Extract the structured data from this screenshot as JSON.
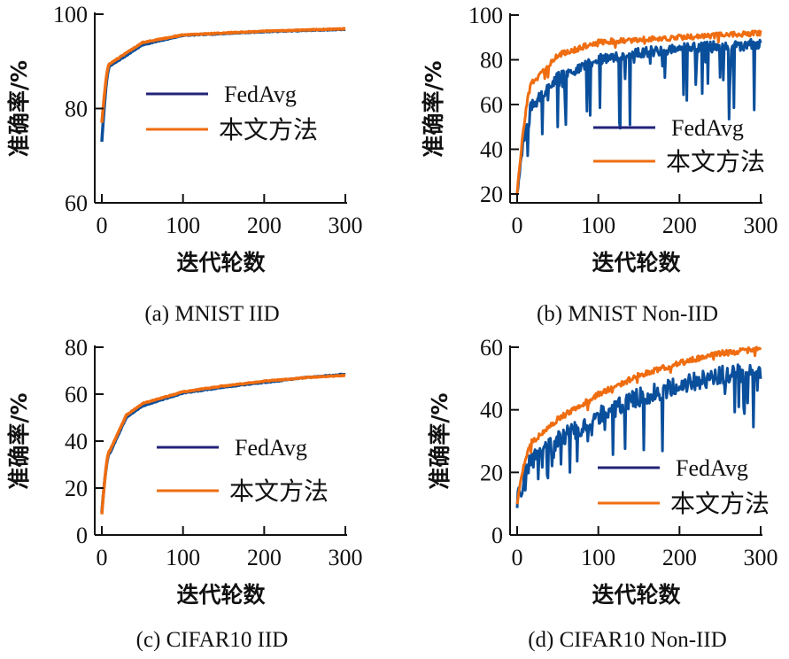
{
  "figure": {
    "colors": {
      "fedavg": "#0a4f9c",
      "fedavg_legend": "#23237a",
      "proposed": "#ef6d10",
      "axis": "#111111"
    }
  },
  "chart_data": [
    {
      "id": "a",
      "type": "line",
      "caption": "(a) MNIST IID",
      "xlabel": "迭代轮数",
      "ylabel": "准确率/%",
      "xlim": [
        0,
        300
      ],
      "ylim": [
        60,
        100
      ],
      "xticks": [
        "0",
        "100",
        "200",
        "300"
      ],
      "yticks": [
        "60",
        "80",
        "100"
      ],
      "legend": [
        "FedAvg",
        "本文方法"
      ],
      "legend_position": "center-right",
      "grid": false,
      "series": [
        {
          "name": "FedAvg",
          "start": 73,
          "plateau": 97,
          "noise": 0.15,
          "dips": 0,
          "key_points": [
            [
              0,
              73
            ],
            [
              10,
              89
            ],
            [
              50,
              93.5
            ],
            [
              100,
              95.5
            ],
            [
              200,
              96.3
            ],
            [
              300,
              96.8
            ]
          ]
        },
        {
          "name": "本文方法",
          "start": 77,
          "plateau": 97,
          "noise": 0.15,
          "dips": 0,
          "key_points": [
            [
              0,
              77
            ],
            [
              10,
              89.5
            ],
            [
              50,
              94
            ],
            [
              100,
              95.6
            ],
            [
              200,
              96.4
            ],
            [
              300,
              96.9
            ]
          ]
        }
      ]
    },
    {
      "id": "b",
      "type": "line",
      "caption": "(b) MNIST Non-IID",
      "xlabel": "迭代轮数",
      "ylabel": "准确率/%",
      "xlim": [
        0,
        300
      ],
      "ylim": [
        15,
        100
      ],
      "xticks": [
        "0",
        "100",
        "200",
        "300"
      ],
      "yticks": [
        "20",
        "40",
        "60",
        "80",
        "100"
      ],
      "legend": [
        "FedAvg",
        "本文方法"
      ],
      "legend_position": "center-right",
      "grid": false,
      "series": [
        {
          "name": "FedAvg",
          "key_points": [
            [
              0,
              20
            ],
            [
              20,
              60
            ],
            [
              50,
              72
            ],
            [
              100,
              80
            ],
            [
              150,
              83
            ],
            [
              200,
              85
            ],
            [
              250,
              86
            ],
            [
              300,
              87
            ]
          ],
          "noise": 4,
          "dip_min": 28
        },
        {
          "name": "本文方法",
          "key_points": [
            [
              0,
              20
            ],
            [
              20,
              70
            ],
            [
              50,
              82
            ],
            [
              100,
              88
            ],
            [
              150,
              89
            ],
            [
              200,
              90
            ],
            [
              250,
              91
            ],
            [
              300,
              92
            ]
          ],
          "noise": 2
        }
      ]
    },
    {
      "id": "c",
      "type": "line",
      "caption": "(c) CIFAR10 IID",
      "xlabel": "迭代轮数",
      "ylabel": "准确率/%",
      "xlim": [
        0,
        300
      ],
      "ylim": [
        0,
        80
      ],
      "xticks": [
        "0",
        "100",
        "200",
        "300"
      ],
      "yticks": [
        "0",
        "20",
        "40",
        "60",
        "80"
      ],
      "legend": [
        "FedAvg",
        "本文方法"
      ],
      "legend_position": "center-right",
      "grid": false,
      "series": [
        {
          "name": "FedAvg",
          "key_points": [
            [
              0,
              10
            ],
            [
              10,
              35
            ],
            [
              30,
              50
            ],
            [
              50,
              55
            ],
            [
              100,
              60.5
            ],
            [
              150,
              63
            ],
            [
              200,
              65
            ],
            [
              250,
              67
            ],
            [
              300,
              68.5
            ]
          ],
          "noise": 0.3
        },
        {
          "name": "本文方法",
          "key_points": [
            [
              0,
              9
            ],
            [
              10,
              36
            ],
            [
              30,
              51
            ],
            [
              50,
              56
            ],
            [
              100,
              61
            ],
            [
              150,
              63.5
            ],
            [
              200,
              65.5
            ],
            [
              250,
              67
            ],
            [
              300,
              68
            ]
          ],
          "noise": 0.3
        }
      ]
    },
    {
      "id": "d",
      "type": "line",
      "caption": "(d) CIFAR10 Non-IID",
      "xlabel": "迭代轮数",
      "ylabel": "准确率/%",
      "xlim": [
        0,
        300
      ],
      "ylim": [
        0,
        62
      ],
      "xticks": [
        "0",
        "100",
        "200",
        "300"
      ],
      "yticks": [
        "0",
        "20",
        "40",
        "60"
      ],
      "legend": [
        "FedAvg",
        "本文方法"
      ],
      "legend_position": "bottom-right",
      "grid": false,
      "series": [
        {
          "name": "FedAvg",
          "key_points": [
            [
              0,
              10
            ],
            [
              20,
              24
            ],
            [
              50,
              30
            ],
            [
              100,
              38
            ],
            [
              150,
              44
            ],
            [
              200,
              48
            ],
            [
              250,
              51
            ],
            [
              300,
              52
            ]
          ],
          "noise": 5,
          "dip_min": 14
        },
        {
          "name": "本文方法",
          "key_points": [
            [
              0,
              10
            ],
            [
              20,
              30
            ],
            [
              50,
              37
            ],
            [
              100,
              45
            ],
            [
              150,
              51
            ],
            [
              200,
              55
            ],
            [
              250,
              58
            ],
            [
              300,
              59.5
            ]
          ],
          "noise": 1.5
        }
      ]
    }
  ]
}
